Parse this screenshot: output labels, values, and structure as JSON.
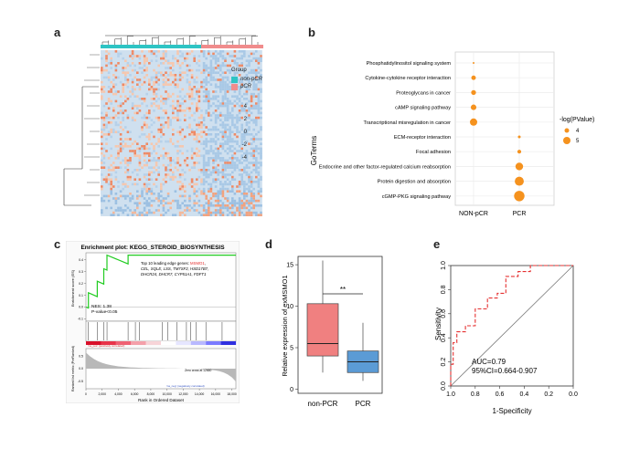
{
  "panels": {
    "a": {
      "letter": "a",
      "legend_title": "Group",
      "groups": [
        {
          "label": "non-pCR",
          "color": "#2EC4C4"
        },
        {
          "label": "pCR",
          "color": "#F08C8C"
        }
      ],
      "scale_ticks": [
        "4",
        "2",
        "0",
        "-2",
        "-4"
      ]
    },
    "b": {
      "letter": "b",
      "ylabel": "GoTerms",
      "legend_title": "-log(PValue)",
      "legend_items": [
        "4",
        "5"
      ],
      "point_color": "#F5921E"
    },
    "c": {
      "letter": "c",
      "title": "Enrichment plot: KEGG_STEROID_BIOSYNTHESIS",
      "ylabel_top": "Enrichment score (ES)",
      "ylabel_bottom": "Ranked list metric (PreRanked)",
      "xlabel": "Rank in Ordered Dataset",
      "leading_prefix": "Top 10 leading edge genes: ",
      "leading_highlight": "MSMO1",
      "leading_line1_rest": ",",
      "leading_line2": "CEL, SQLE, LSS, TM7SF2, HSD17B7,",
      "leading_line3": "DHCR24, DHCR7, CYP51A1, FDFT1",
      "nes": "NES: 1.38",
      "pvalue": "P-value<0.05",
      "pos_label": "'na_pos' (positively correlated)",
      "neg_label": "'na_neg' (negatively correlated)",
      "zero_label": "Zero cross at 12660",
      "es_ticks": [
        "0.4",
        "0.3",
        "0.2",
        "0.1",
        "0.0",
        "-0.1"
      ],
      "metric_ticks": [
        "0.5",
        "0.0",
        "-0.5"
      ],
      "x_ticks": [
        "0",
        "2,000",
        "4,000",
        "6,000",
        "8,000",
        "10,000",
        "12,000",
        "14,000",
        "16,000",
        "18,000"
      ]
    },
    "d": {
      "letter": "d",
      "ylabel": "Relative expression of exMSMO1",
      "significance": "**"
    },
    "e": {
      "letter": "e",
      "xlabel": "1-Specificity",
      "ylabel": "Sensitivity",
      "auc": "AUC=0.79",
      "ci": "95%CI=0.664-0.907"
    }
  },
  "chart_data": [
    {
      "panel": "b",
      "type": "scatter",
      "categories": [
        "NON-pCR",
        "PCR"
      ],
      "terms": [
        "Phosphatidylinositol signaling system",
        "Cytokine-cytokine receptor interaction",
        "Proteoglycans in cancer",
        "cAMP signaling pathway",
        "Transcriptional misregulation in cancer",
        "ECM-receptor interaction",
        "Focal adhesion",
        "Endocrine and other factor-regulated calcium reabsorption",
        "Protein digestion and absorption",
        "cGMP-PKG signaling pathway"
      ],
      "points": [
        {
          "term": "Phosphatidylinositol signaling system",
          "group": "NON-pCR",
          "value": 3.2
        },
        {
          "term": "Cytokine-cytokine receptor interaction",
          "group": "NON-pCR",
          "value": 4.1
        },
        {
          "term": "Proteoglycans in cancer",
          "group": "NON-pCR",
          "value": 4.2
        },
        {
          "term": "cAMP signaling pathway",
          "group": "NON-pCR",
          "value": 4.4
        },
        {
          "term": "Transcriptional misregulation in cancer",
          "group": "NON-pCR",
          "value": 4.9
        },
        {
          "term": "ECM-receptor interaction",
          "group": "PCR",
          "value": 3.6
        },
        {
          "term": "Focal adhesion",
          "group": "PCR",
          "value": 3.9
        },
        {
          "term": "Endocrine and other factor-regulated calcium reabsorption",
          "group": "PCR",
          "value": 5.0
        },
        {
          "term": "Protein digestion and absorption",
          "group": "PCR",
          "value": 5.4
        },
        {
          "term": "cGMP-PKG signaling pathway",
          "group": "PCR",
          "value": 5.8
        }
      ]
    },
    {
      "panel": "d",
      "type": "box",
      "categories": [
        "non-PCR",
        "PCR"
      ],
      "yticks": [
        0,
        5,
        10,
        15
      ],
      "ylim": [
        -0.5,
        16
      ],
      "boxes": [
        {
          "label": "non-PCR",
          "min": 2,
          "q1": 4,
          "median": 5.5,
          "q3": 10.3,
          "max": 15.5,
          "color": "#F08080"
        },
        {
          "label": "PCR",
          "min": 1,
          "q1": 2,
          "median": 3.3,
          "q3": 4.6,
          "max": 8,
          "color": "#5B9BD5"
        }
      ]
    },
    {
      "panel": "e",
      "type": "line",
      "xticks": [
        "1.0",
        "0.8",
        "0.6",
        "0.4",
        "0.2",
        "0.0"
      ],
      "yticks": [
        "0.0",
        "0.2",
        "0.4",
        "0.6",
        "0.8",
        "1.0"
      ],
      "xlim": [
        1.0,
        0.0
      ],
      "ylim": [
        0.0,
        1.0
      ],
      "roc": [
        [
          1.0,
          0.0
        ],
        [
          1.0,
          0.18
        ],
        [
          0.98,
          0.18
        ],
        [
          0.98,
          0.36
        ],
        [
          0.95,
          0.36
        ],
        [
          0.95,
          0.45
        ],
        [
          0.88,
          0.45
        ],
        [
          0.88,
          0.5
        ],
        [
          0.8,
          0.5
        ],
        [
          0.8,
          0.64
        ],
        [
          0.7,
          0.64
        ],
        [
          0.7,
          0.73
        ],
        [
          0.62,
          0.73
        ],
        [
          0.62,
          0.77
        ],
        [
          0.55,
          0.77
        ],
        [
          0.55,
          0.91
        ],
        [
          0.45,
          0.91
        ],
        [
          0.45,
          0.95
        ],
        [
          0.35,
          0.95
        ],
        [
          0.35,
          1.0
        ],
        [
          0.0,
          1.0
        ]
      ]
    }
  ]
}
